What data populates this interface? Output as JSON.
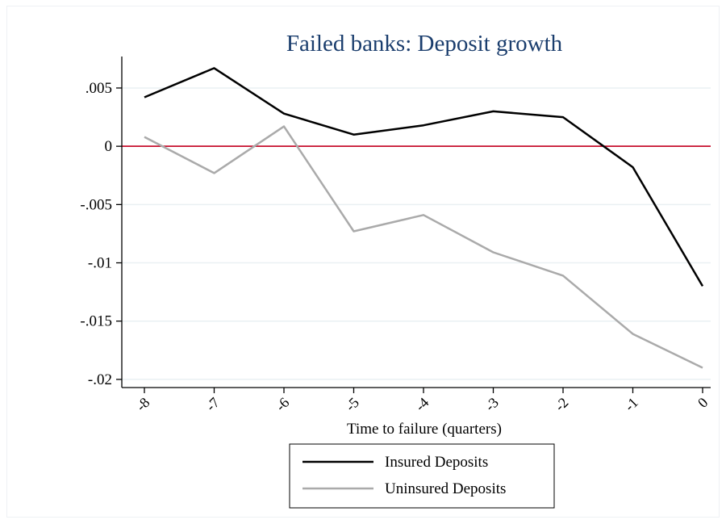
{
  "chart_data": {
    "type": "line",
    "title": "Failed banks: Deposit growth",
    "xlabel": "Time to failure (quarters)",
    "ylabel": "",
    "x": [
      -8,
      -7,
      -6,
      -5,
      -4,
      -3,
      -2,
      -1,
      0
    ],
    "x_tick_labels": [
      "-8",
      "-7",
      "-6",
      "-5",
      "-4",
      "-3",
      "-2",
      "-1",
      "0"
    ],
    "y_ticks": [
      0.005,
      0,
      -0.005,
      -0.01,
      -0.015,
      -0.02
    ],
    "y_tick_labels": [
      ".005",
      "0",
      "-.005",
      "-.01",
      "-.015",
      "-.02"
    ],
    "xlim": [
      -8,
      0
    ],
    "ylim": [
      -0.0207,
      0.0077
    ],
    "grid": true,
    "reference_line": {
      "y": 0,
      "color": "#c8102e"
    },
    "legend_position": "bottom",
    "series": [
      {
        "name": "Insured Deposits",
        "color": "#000000",
        "values": [
          0.0042,
          0.0067,
          0.0028,
          0.001,
          0.0018,
          0.003,
          0.0025,
          -0.0018,
          -0.012
        ]
      },
      {
        "name": "Uninsured Deposits",
        "color": "#aaaaaa",
        "values": [
          0.0008,
          -0.0023,
          0.0017,
          -0.0073,
          -0.0059,
          -0.0091,
          -0.0111,
          -0.0161,
          -0.019
        ]
      }
    ]
  }
}
